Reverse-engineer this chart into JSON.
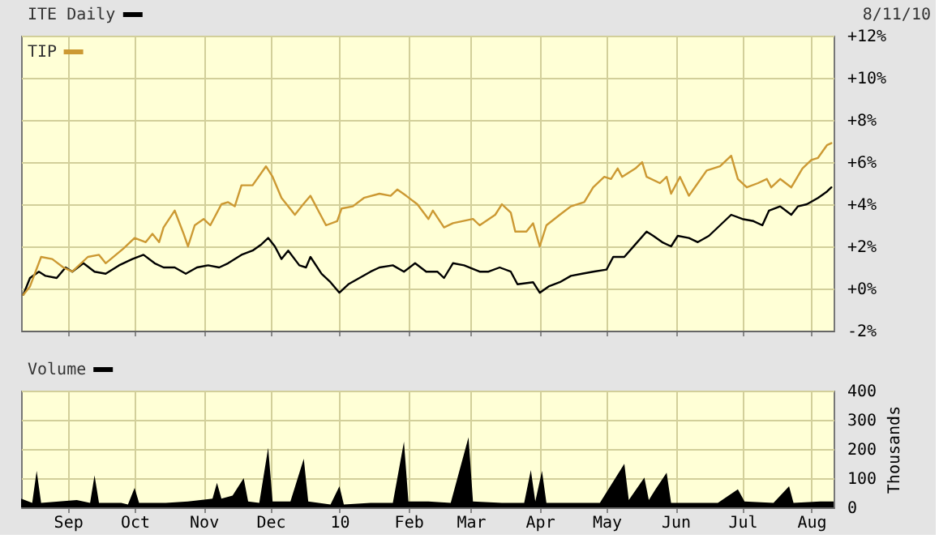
{
  "chart_data": [
    {
      "type": "line",
      "legend": "top left",
      "grid": true,
      "tick_labels": "y",
      "annotations": [
        "8/11/10"
      ],
      "xlim": [
        "2009-08-11",
        "2010-08-11"
      ],
      "xticks": [
        {
          "value": "2009-09-01",
          "label": null
        },
        {
          "value": "2009-10-01",
          "label": null
        },
        {
          "value": "2009-11-01",
          "label": null
        },
        {
          "value": "2009-12-01",
          "label": null
        },
        {
          "value": "2010-01-01",
          "label": null
        },
        {
          "value": "2010-02-01",
          "label": null
        },
        {
          "value": "2010-03-01",
          "label": null
        },
        {
          "value": "2010-04-01",
          "label": null
        },
        {
          "value": "2010-05-01",
          "label": null
        },
        {
          "value": "2010-06-01",
          "label": null
        },
        {
          "value": "2010-07-01",
          "label": null
        },
        {
          "value": "2010-08-01",
          "label": null
        }
      ],
      "ylim": [
        -2,
        12
      ],
      "yticks": [
        {
          "value": -2,
          "label": "-2%"
        },
        {
          "value": 0,
          "label": "+0%"
        },
        {
          "value": 2,
          "label": "+2%"
        },
        {
          "value": 4,
          "label": "+4%"
        },
        {
          "value": 6,
          "label": "+6%"
        },
        {
          "value": 8,
          "label": "+8%"
        },
        {
          "value": 10,
          "label": "+10%"
        },
        {
          "value": 12,
          "label": "+12%"
        }
      ],
      "series": [
        {
          "name": "ITE Daily",
          "color": "#000000",
          "x": [
            "2009-08-12",
            "2009-08-15",
            "2009-08-19",
            "2009-08-22",
            "2009-08-27",
            "2009-08-31",
            "2009-09-03",
            "2009-09-08",
            "2009-09-13",
            "2009-09-18",
            "2009-09-24",
            "2009-09-30",
            "2009-10-05",
            "2009-10-10",
            "2009-10-14",
            "2009-10-19",
            "2009-10-24",
            "2009-10-29",
            "2009-11-03",
            "2009-11-08",
            "2009-11-12",
            "2009-11-18",
            "2009-11-23",
            "2009-11-27",
            "2009-11-30",
            "2009-12-03",
            "2009-12-06",
            "2009-12-09",
            "2009-12-14",
            "2009-12-17",
            "2009-12-19",
            "2009-12-24",
            "2009-12-28",
            "2010-01-01",
            "2010-01-05",
            "2010-01-10",
            "2010-01-15",
            "2010-01-19",
            "2010-01-25",
            "2010-01-30",
            "2010-02-04",
            "2010-02-09",
            "2010-02-14",
            "2010-02-17",
            "2010-02-21",
            "2010-02-26",
            "2010-03-05",
            "2010-03-09",
            "2010-03-14",
            "2010-03-19",
            "2010-03-22",
            "2010-03-29",
            "2010-04-01",
            "2010-04-05",
            "2010-04-10",
            "2010-04-15",
            "2010-04-20",
            "2010-04-25",
            "2010-05-01",
            "2010-05-04",
            "2010-05-09",
            "2010-05-14",
            "2010-05-19",
            "2010-05-22",
            "2010-05-26",
            "2010-05-30",
            "2010-06-02",
            "2010-06-07",
            "2010-06-11",
            "2010-06-16",
            "2010-06-21",
            "2010-06-26",
            "2010-07-01",
            "2010-07-06",
            "2010-07-10",
            "2010-07-13",
            "2010-07-18",
            "2010-07-23",
            "2010-07-26",
            "2010-07-30",
            "2010-08-04",
            "2010-08-08",
            "2010-08-10"
          ],
          "values": [
            -0.3,
            0.5,
            0.8,
            0.6,
            0.5,
            1.0,
            0.8,
            1.2,
            0.8,
            0.7,
            1.1,
            1.4,
            1.6,
            1.2,
            1.0,
            1.0,
            0.7,
            1.0,
            1.1,
            1.0,
            1.2,
            1.6,
            1.8,
            2.1,
            2.4,
            2.0,
            1.4,
            1.8,
            1.1,
            1.0,
            1.5,
            0.7,
            0.3,
            -0.2,
            0.2,
            0.5,
            0.8,
            1.0,
            1.1,
            0.8,
            1.2,
            0.8,
            0.8,
            0.5,
            1.2,
            1.1,
            0.8,
            0.8,
            1.0,
            0.8,
            0.2,
            0.3,
            -0.2,
            0.1,
            0.3,
            0.6,
            0.7,
            0.8,
            0.9,
            1.5,
            1.5,
            2.1,
            2.7,
            2.5,
            2.2,
            2.0,
            2.5,
            2.4,
            2.2,
            2.5,
            3.0,
            3.5,
            3.3,
            3.2,
            3.0,
            3.7,
            3.9,
            3.5,
            3.9,
            4.0,
            4.3,
            4.6,
            4.8
          ]
        },
        {
          "name": "TIP",
          "color": "#cc9933",
          "x": [
            "2009-08-12",
            "2009-08-15",
            "2009-08-20",
            "2009-08-25",
            "2009-08-30",
            "2009-09-03",
            "2009-09-10",
            "2009-09-15",
            "2009-09-18",
            "2009-09-26",
            "2009-10-01",
            "2009-10-06",
            "2009-10-09",
            "2009-10-12",
            "2009-10-14",
            "2009-10-19",
            "2009-10-23",
            "2009-10-25",
            "2009-10-28",
            "2009-11-01",
            "2009-11-04",
            "2009-11-09",
            "2009-11-12",
            "2009-11-15",
            "2009-11-18",
            "2009-11-23",
            "2009-11-29",
            "2009-12-02",
            "2009-12-06",
            "2009-12-12",
            "2009-12-15",
            "2009-12-19",
            "2009-12-22",
            "2009-12-26",
            "2009-12-31",
            "2010-01-02",
            "2010-01-07",
            "2010-01-12",
            "2010-01-19",
            "2010-01-24",
            "2010-01-27",
            "2010-01-31",
            "2010-02-05",
            "2010-02-10",
            "2010-02-12",
            "2010-02-17",
            "2010-02-21",
            "2010-03-02",
            "2010-03-05",
            "2010-03-12",
            "2010-03-15",
            "2010-03-19",
            "2010-03-21",
            "2010-03-26",
            "2010-03-29",
            "2010-04-01",
            "2010-04-04",
            "2010-04-10",
            "2010-04-15",
            "2010-04-21",
            "2010-04-25",
            "2010-04-30",
            "2010-05-03",
            "2010-05-06",
            "2010-05-08",
            "2010-05-14",
            "2010-05-17",
            "2010-05-19",
            "2010-05-25",
            "2010-05-28",
            "2010-05-30",
            "2010-06-03",
            "2010-06-07",
            "2010-06-11",
            "2010-06-15",
            "2010-06-21",
            "2010-06-26",
            "2010-06-29",
            "2010-07-03",
            "2010-07-08",
            "2010-07-12",
            "2010-07-14",
            "2010-07-18",
            "2010-07-23",
            "2010-07-28",
            "2010-08-01",
            "2010-08-04",
            "2010-08-08",
            "2010-08-10"
          ],
          "values": [
            -0.3,
            0.1,
            1.5,
            1.4,
            1.0,
            0.8,
            1.5,
            1.6,
            1.2,
            1.9,
            2.4,
            2.2,
            2.6,
            2.2,
            2.9,
            3.7,
            2.6,
            2.0,
            3.0,
            3.3,
            3.0,
            4.0,
            4.1,
            3.9,
            4.9,
            4.9,
            5.8,
            5.3,
            4.3,
            3.5,
            3.9,
            4.4,
            3.8,
            3.0,
            3.2,
            3.8,
            3.9,
            4.3,
            4.5,
            4.4,
            4.7,
            4.4,
            4.0,
            3.3,
            3.7,
            2.9,
            3.1,
            3.3,
            3.0,
            3.5,
            4.0,
            3.6,
            2.7,
            2.7,
            3.1,
            2.0,
            3.0,
            3.5,
            3.9,
            4.1,
            4.8,
            5.3,
            5.2,
            5.7,
            5.3,
            5.7,
            6.0,
            5.3,
            5.0,
            5.3,
            4.5,
            5.3,
            4.4,
            5.0,
            5.6,
            5.8,
            6.3,
            5.2,
            4.8,
            5.0,
            5.2,
            4.8,
            5.2,
            4.8,
            5.7,
            6.1,
            6.2,
            6.8,
            6.9
          ]
        }
      ]
    },
    {
      "type": "area",
      "legend": "top left",
      "grid": true,
      "ylabel": "Thousands",
      "xlim": [
        "2009-08-11",
        "2010-08-11"
      ],
      "xticks": [
        {
          "value": "2009-09-01",
          "label": "Sep"
        },
        {
          "value": "2009-10-01",
          "label": "Oct"
        },
        {
          "value": "2009-11-01",
          "label": "Nov"
        },
        {
          "value": "2009-12-01",
          "label": "Dec"
        },
        {
          "value": "2010-01-01",
          "label": "10"
        },
        {
          "value": "2010-02-01",
          "label": "Feb"
        },
        {
          "value": "2010-03-01",
          "label": "Mar"
        },
        {
          "value": "2010-04-01",
          "label": "Apr"
        },
        {
          "value": "2010-05-01",
          "label": "May"
        },
        {
          "value": "2010-06-01",
          "label": "Jun"
        },
        {
          "value": "2010-07-01",
          "label": "Jul"
        },
        {
          "value": "2010-08-01",
          "label": "Aug"
        }
      ],
      "ylim": [
        0,
        400
      ],
      "yticks": [
        0,
        100,
        200,
        300,
        400
      ],
      "series": [
        {
          "name": "Volume",
          "color": "#000000",
          "x": [
            "2009-08-11",
            "2009-08-16",
            "2009-08-18",
            "2009-08-20",
            "2009-08-28",
            "2009-09-05",
            "2009-09-11",
            "2009-09-13",
            "2009-09-15",
            "2009-09-25",
            "2009-09-28",
            "2009-10-01",
            "2009-10-03",
            "2009-10-15",
            "2009-10-25",
            "2009-11-05",
            "2009-11-07",
            "2009-11-09",
            "2009-11-14",
            "2009-11-19",
            "2009-11-21",
            "2009-11-26",
            "2009-11-30",
            "2009-12-02",
            "2009-12-10",
            "2009-12-16",
            "2009-12-18",
            "2009-12-28",
            "2010-01-01",
            "2010-01-03",
            "2010-01-15",
            "2010-01-25",
            "2010-01-30",
            "2010-02-01",
            "2010-02-10",
            "2010-02-20",
            "2010-02-28",
            "2010-03-02",
            "2010-03-15",
            "2010-03-25",
            "2010-03-28",
            "2010-03-30",
            "2010-04-02",
            "2010-04-04",
            "2010-04-15",
            "2010-04-28",
            "2010-05-09",
            "2010-05-11",
            "2010-05-18",
            "2010-05-20",
            "2010-05-23",
            "2010-05-28",
            "2010-05-30",
            "2010-06-10",
            "2010-06-20",
            "2010-06-29",
            "2010-07-02",
            "2010-07-15",
            "2010-07-22",
            "2010-07-24",
            "2010-08-05",
            "2010-08-11"
          ],
          "values": [
            30,
            15,
            125,
            15,
            20,
            25,
            15,
            110,
            15,
            15,
            10,
            67,
            15,
            15,
            20,
            30,
            84,
            30,
            40,
            100,
            20,
            15,
            204,
            20,
            20,
            167,
            20,
            10,
            72,
            10,
            15,
            15,
            225,
            20,
            20,
            15,
            240,
            20,
            15,
            15,
            128,
            20,
            125,
            15,
            15,
            15,
            149,
            25,
            102,
            25,
            62,
            119,
            15,
            15,
            15,
            62,
            20,
            15,
            72,
            15,
            20,
            20
          ]
        }
      ]
    }
  ]
}
